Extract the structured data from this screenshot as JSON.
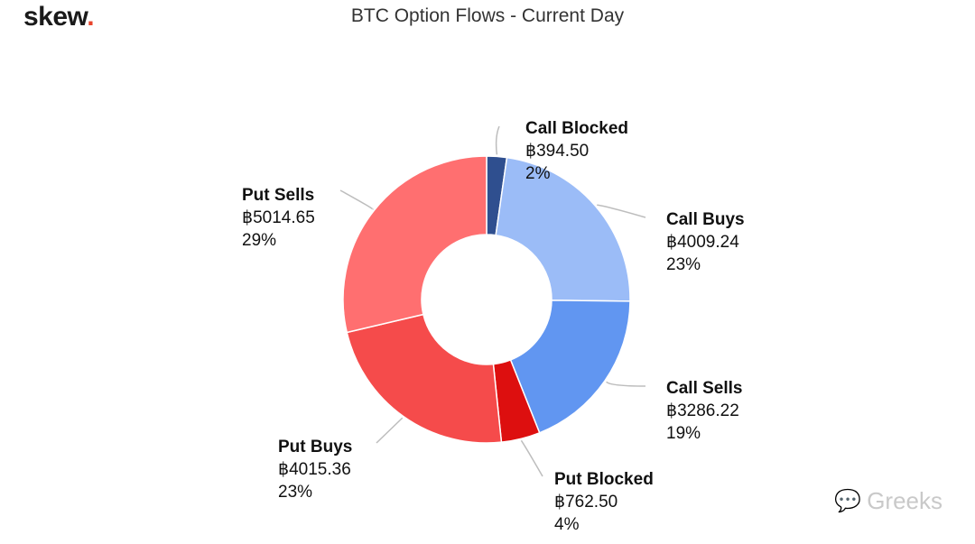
{
  "brand": {
    "logo_text": "skew",
    "logo_dot": "."
  },
  "watermark": {
    "text": "Greeks",
    "icon": "wechat-icon"
  },
  "chart_data": {
    "type": "pie",
    "variant": "donut",
    "title": "BTC Option Flows - Current Day",
    "currency_symbol": "฿",
    "slices": [
      {
        "name": "Call Blocked",
        "value_label": "฿394.50",
        "value": 394.5,
        "pct_label": "2%",
        "color": "#2f4f8f"
      },
      {
        "name": "Call Buys",
        "value_label": "฿4009.24",
        "value": 4009.24,
        "pct_label": "23%",
        "color": "#9bbcf7"
      },
      {
        "name": "Call Sells",
        "value_label": "฿3286.22",
        "value": 3286.22,
        "pct_label": "19%",
        "color": "#6196f1"
      },
      {
        "name": "Put Blocked",
        "value_label": "฿762.50",
        "value": 762.5,
        "pct_label": "4%",
        "color": "#dd0f0f"
      },
      {
        "name": "Put Buys",
        "value_label": "฿4015.36",
        "value": 4015.36,
        "pct_label": "23%",
        "color": "#f54b4b"
      },
      {
        "name": "Put Sells",
        "value_label": "฿5014.65",
        "value": 5014.65,
        "pct_label": "29%",
        "color": "#ff6f70"
      }
    ]
  }
}
